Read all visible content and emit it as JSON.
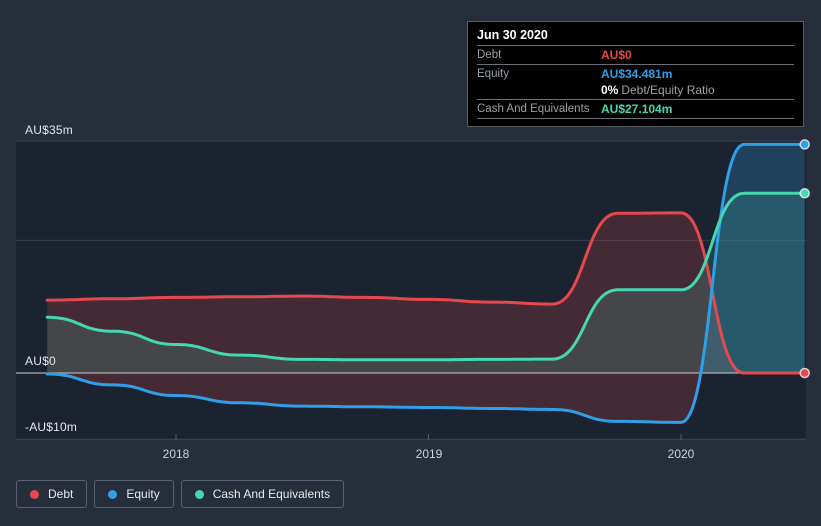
{
  "colors": {
    "page_bg": "#272e3b",
    "plot_bg": "#1c2330",
    "grid": "#363d4c",
    "axis_line": "#3d4453",
    "tick": "#596070",
    "zero_line": "#b9bdc3",
    "tooltip_bg": "#000000",
    "tooltip_border": "#595d63",
    "tooltip_separator": "#6b6e73",
    "tooltip_label": "#9aa0a6",
    "axis_label": "#e2e7ed",
    "debt": "#e5484d",
    "equity": "#2f9fe8",
    "cash": "#45d6b2"
  },
  "tooltip": {
    "title": "Jun 30 2020",
    "rows": [
      {
        "label": "Debt",
        "value": "AU$0",
        "value_color": "#e5484d"
      },
      {
        "label": "Equity",
        "value": "AU$34.481m",
        "value_color": "#2f9fe8"
      },
      {
        "label": "",
        "ratio_bold": "0%",
        "ratio_text": "Debt/Equity Ratio"
      },
      {
        "label": "Cash And Equivalents",
        "value": "AU$27.104m",
        "value_color": "#45d6b2"
      }
    ]
  },
  "axis": {
    "y_labels": [
      {
        "text": "AU$35m",
        "value": 35
      },
      {
        "text": "AU$0",
        "value": 0
      },
      {
        "text": "-AU$10m",
        "value": -10
      }
    ],
    "x_labels": [
      {
        "text": "2018",
        "value": 2018
      },
      {
        "text": "2019",
        "value": 2019
      },
      {
        "text": "2020",
        "value": 2020
      }
    ]
  },
  "legend": {
    "items": [
      {
        "label": "Debt",
        "color": "#e5484d"
      },
      {
        "label": "Equity",
        "color": "#2f9fe8"
      },
      {
        "label": "Cash And Equivalents",
        "color": "#45d6b2"
      }
    ]
  },
  "chart_data": {
    "type": "area",
    "x_axis": "year",
    "x_range": [
      2017.49,
      2020.49
    ],
    "y_range": [
      -10,
      35
    ],
    "y_unit": "AU$ millions",
    "y_gridlines": [
      35,
      20,
      0,
      -10
    ],
    "x_ticks": [
      2018,
      2019,
      2020
    ],
    "legend_position": "bottom-left",
    "series": [
      {
        "key": "debt",
        "name": "Debt",
        "color": "#e5484d",
        "fill_opacity": 0.2,
        "points": [
          [
            2017.49,
            11.0
          ],
          [
            2017.75,
            11.2
          ],
          [
            2018.0,
            11.4
          ],
          [
            2018.25,
            11.5
          ],
          [
            2018.5,
            11.6
          ],
          [
            2018.75,
            11.4
          ],
          [
            2019.0,
            11.1
          ],
          [
            2019.25,
            10.7
          ],
          [
            2019.49,
            10.4
          ],
          [
            2019.75,
            24.1
          ],
          [
            2020.0,
            24.15
          ],
          [
            2020.25,
            0
          ],
          [
            2020.49,
            0
          ]
        ]
      },
      {
        "key": "equity",
        "name": "Equity",
        "color": "#2f9fe8",
        "fill_opacity": 0.24,
        "points": [
          [
            2017.49,
            -0.15
          ],
          [
            2017.75,
            -1.8
          ],
          [
            2018.0,
            -3.4
          ],
          [
            2018.25,
            -4.5
          ],
          [
            2018.5,
            -5.0
          ],
          [
            2018.75,
            -5.1
          ],
          [
            2019.0,
            -5.2
          ],
          [
            2019.25,
            -5.35
          ],
          [
            2019.49,
            -5.5
          ],
          [
            2019.75,
            -7.3
          ],
          [
            2020.0,
            -7.45
          ],
          [
            2020.25,
            34.481
          ],
          [
            2020.49,
            34.481
          ]
        ]
      },
      {
        "key": "cash",
        "name": "Cash And Equivalents",
        "color": "#45d6b2",
        "fill_opacity": 0.17,
        "points": [
          [
            2017.49,
            8.4
          ],
          [
            2017.75,
            6.3
          ],
          [
            2018.0,
            4.3
          ],
          [
            2018.25,
            2.7
          ],
          [
            2018.5,
            2.05
          ],
          [
            2018.75,
            2.0
          ],
          [
            2019.0,
            2.0
          ],
          [
            2019.25,
            2.05
          ],
          [
            2019.49,
            2.1
          ],
          [
            2019.75,
            12.55
          ],
          [
            2020.0,
            12.55
          ],
          [
            2020.25,
            27.104
          ],
          [
            2020.49,
            27.104
          ]
        ]
      }
    ]
  }
}
